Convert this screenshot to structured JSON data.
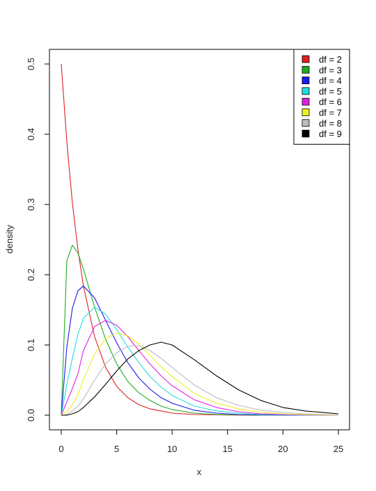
{
  "chart_data": {
    "type": "line",
    "title": "",
    "xlabel": "x",
    "ylabel": "density",
    "xlim": [
      0,
      25
    ],
    "ylim": [
      0,
      0.5
    ],
    "xticks": [
      0,
      5,
      10,
      15,
      20,
      25
    ],
    "yticks": [
      0.0,
      0.1,
      0.2,
      0.3,
      0.4,
      0.5
    ],
    "xtick_labels": [
      "0",
      "5",
      "10",
      "15",
      "20",
      "25"
    ],
    "ytick_labels": [
      "0.0",
      "0.1",
      "0.2",
      "0.3",
      "0.4",
      "0.5"
    ],
    "grid": false,
    "legend_position": "top-right",
    "x": [
      0,
      0.5,
      1,
      1.5,
      2,
      3,
      4,
      5,
      6,
      7,
      8,
      9,
      10,
      12,
      14,
      16,
      18,
      20,
      22,
      25
    ],
    "series": [
      {
        "name": "df =  2",
        "color": "#dd1f1f",
        "values": [
          0.5,
          0.389,
          0.303,
          0.236,
          0.184,
          0.112,
          0.068,
          0.041,
          0.025,
          0.015,
          0.009,
          0.006,
          0.003,
          0.001,
          0.0005,
          0.0002,
          0.0001,
          0.0,
          0.0,
          0.0
        ]
      },
      {
        "name": "df =  3",
        "color": "#22aa22",
        "values": [
          0.0,
          0.22,
          0.242,
          0.231,
          0.208,
          0.154,
          0.108,
          0.073,
          0.048,
          0.032,
          0.021,
          0.013,
          0.008,
          0.003,
          0.001,
          0.0005,
          0.0002,
          0.0001,
          0.0,
          0.0
        ]
      },
      {
        "name": "df =  4",
        "color": "#1a1aee",
        "values": [
          0.0,
          0.097,
          0.152,
          0.177,
          0.184,
          0.167,
          0.135,
          0.103,
          0.075,
          0.053,
          0.037,
          0.025,
          0.017,
          0.007,
          0.003,
          0.001,
          0.0005,
          0.0002,
          0.0001,
          0.0
        ]
      },
      {
        "name": "df =  5",
        "color": "#22dddd",
        "values": [
          0.0,
          0.044,
          0.081,
          0.115,
          0.138,
          0.154,
          0.144,
          0.122,
          0.097,
          0.075,
          0.055,
          0.04,
          0.028,
          0.013,
          0.006,
          0.003,
          0.001,
          0.0005,
          0.0002,
          0.0
        ]
      },
      {
        "name": "df =  6",
        "color": "#dd22dd",
        "values": [
          0.0,
          0.019,
          0.038,
          0.059,
          0.092,
          0.126,
          0.135,
          0.128,
          0.112,
          0.092,
          0.073,
          0.056,
          0.042,
          0.022,
          0.011,
          0.005,
          0.002,
          0.001,
          0.0005,
          0.0001
        ]
      },
      {
        "name": "df =  7",
        "color": "#eeee22",
        "values": [
          0.0,
          0.005,
          0.015,
          0.029,
          0.051,
          0.087,
          0.109,
          0.117,
          0.113,
          0.101,
          0.085,
          0.069,
          0.055,
          0.031,
          0.017,
          0.009,
          0.004,
          0.002,
          0.001,
          0.0002
        ]
      },
      {
        "name": "df =  8",
        "color": "#bbbbbb",
        "values": [
          0.0,
          0.001,
          0.006,
          0.013,
          0.023,
          0.05,
          0.073,
          0.089,
          0.098,
          0.099,
          0.092,
          0.081,
          0.068,
          0.043,
          0.025,
          0.014,
          0.007,
          0.004,
          0.002,
          0.0005
        ]
      },
      {
        "name": "df =  9",
        "color": "#000000",
        "values": [
          0.0,
          0.0,
          0.002,
          0.005,
          0.011,
          0.026,
          0.044,
          0.063,
          0.08,
          0.092,
          0.1,
          0.104,
          0.1,
          0.079,
          0.056,
          0.036,
          0.021,
          0.011,
          0.006,
          0.002
        ]
      }
    ]
  }
}
